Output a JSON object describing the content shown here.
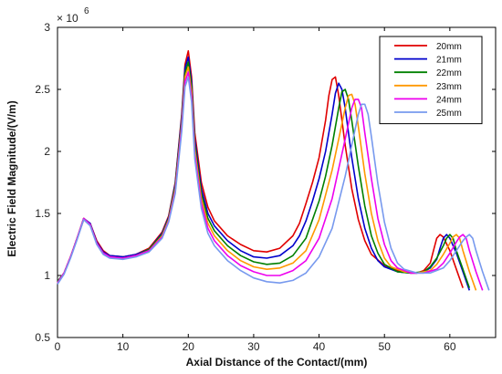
{
  "chart_data": {
    "type": "line",
    "xlabel": "Axial Distance of the Contact/(mm)",
    "ylabel": "Electric Field Magnitude/(V/m)",
    "exponent": {
      "base": "× 10",
      "power": "6"
    },
    "xlim": [
      0,
      67
    ],
    "ylim": [
      0.5,
      3
    ],
    "xticks": [
      0,
      10,
      20,
      30,
      40,
      50,
      60
    ],
    "yticks": [
      0.5,
      1,
      1.5,
      2,
      2.5,
      3
    ],
    "ytick_labels": [
      "0.5",
      "1",
      "1.5",
      "2",
      "2.5",
      "3"
    ],
    "grid": false,
    "legend_position": "top-right",
    "series": [
      {
        "name": "20mm",
        "color": "#e00000",
        "x": [
          0,
          1,
          2,
          3,
          4,
          5,
          6,
          7,
          8,
          10,
          12,
          14,
          16,
          17,
          18,
          19,
          19.5,
          20,
          20.5,
          21,
          22,
          23,
          24,
          26,
          28,
          30,
          32,
          34,
          36,
          37,
          38,
          39,
          40,
          41,
          41.5,
          42,
          42.5,
          43,
          44,
          45,
          46,
          47,
          48,
          50,
          52,
          54,
          55,
          56,
          57,
          57.5,
          58,
          58.5,
          59,
          60,
          61,
          62
        ],
        "y": [
          0.95,
          1.02,
          1.15,
          1.3,
          1.45,
          1.42,
          1.28,
          1.2,
          1.16,
          1.15,
          1.17,
          1.22,
          1.35,
          1.48,
          1.75,
          2.3,
          2.7,
          2.81,
          2.6,
          2.15,
          1.75,
          1.55,
          1.44,
          1.32,
          1.25,
          1.2,
          1.19,
          1.22,
          1.32,
          1.42,
          1.58,
          1.75,
          1.95,
          2.25,
          2.45,
          2.58,
          2.6,
          2.45,
          2.05,
          1.7,
          1.45,
          1.28,
          1.17,
          1.08,
          1.04,
          1.02,
          1.02,
          1.04,
          1.1,
          1.2,
          1.3,
          1.33,
          1.31,
          1.2,
          1.05,
          0.9
        ]
      },
      {
        "name": "21mm",
        "color": "#0000cc",
        "x": [
          0,
          1,
          2,
          3,
          4,
          5,
          6,
          7,
          8,
          10,
          12,
          14,
          16,
          17,
          18,
          19,
          19.5,
          20,
          20.5,
          21,
          22,
          23,
          24,
          26,
          28,
          30,
          32,
          34,
          36,
          37,
          38,
          39,
          40,
          41,
          42,
          42.5,
          43,
          43.5,
          44,
          45,
          46,
          47,
          48,
          49,
          50,
          52,
          54,
          55,
          56,
          57,
          58,
          58.5,
          59,
          59.5,
          60,
          61,
          62,
          63
        ],
        "y": [
          0.95,
          1.02,
          1.15,
          1.3,
          1.46,
          1.42,
          1.27,
          1.19,
          1.16,
          1.15,
          1.17,
          1.21,
          1.34,
          1.47,
          1.74,
          2.28,
          2.67,
          2.76,
          2.56,
          2.1,
          1.7,
          1.5,
          1.4,
          1.28,
          1.2,
          1.15,
          1.14,
          1.16,
          1.24,
          1.32,
          1.44,
          1.6,
          1.78,
          2.0,
          2.3,
          2.47,
          2.55,
          2.5,
          2.35,
          1.95,
          1.62,
          1.38,
          1.22,
          1.12,
          1.07,
          1.03,
          1.02,
          1.02,
          1.03,
          1.06,
          1.13,
          1.22,
          1.3,
          1.33,
          1.3,
          1.18,
          1.03,
          0.88
        ]
      },
      {
        "name": "22mm",
        "color": "#008000",
        "x": [
          0,
          1,
          2,
          3,
          4,
          5,
          6,
          7,
          8,
          10,
          12,
          14,
          16,
          17,
          18,
          19,
          19.5,
          20,
          20.5,
          21,
          22,
          23,
          24,
          26,
          28,
          30,
          32,
          34,
          36,
          38,
          40,
          41,
          42,
          43,
          43.5,
          44,
          44.5,
          45,
          46,
          47,
          48,
          49,
          50,
          52,
          54,
          56,
          57,
          58,
          59,
          59.5,
          60,
          60.5,
          61,
          62,
          63
        ],
        "y": [
          0.95,
          1.02,
          1.15,
          1.3,
          1.46,
          1.41,
          1.26,
          1.18,
          1.15,
          1.14,
          1.16,
          1.21,
          1.33,
          1.46,
          1.72,
          2.25,
          2.63,
          2.72,
          2.52,
          2.06,
          1.66,
          1.46,
          1.36,
          1.24,
          1.16,
          1.11,
          1.09,
          1.1,
          1.16,
          1.3,
          1.6,
          1.8,
          2.05,
          2.35,
          2.48,
          2.5,
          2.42,
          2.25,
          1.88,
          1.56,
          1.32,
          1.18,
          1.09,
          1.03,
          1.02,
          1.03,
          1.07,
          1.14,
          1.24,
          1.3,
          1.33,
          1.3,
          1.2,
          1.05,
          0.9
        ]
      },
      {
        "name": "23mm",
        "color": "#ff9900",
        "x": [
          0,
          1,
          2,
          3,
          4,
          5,
          6,
          7,
          8,
          10,
          12,
          14,
          16,
          17,
          18,
          19,
          19.5,
          20,
          20.5,
          21,
          22,
          23,
          24,
          26,
          28,
          30,
          32,
          34,
          36,
          38,
          40,
          42,
          43,
          44,
          44.5,
          45,
          45.5,
          46,
          47,
          48,
          49,
          50,
          51,
          53,
          55,
          57,
          58,
          59,
          60,
          60.5,
          61,
          61.5,
          62,
          63,
          64
        ],
        "y": [
          0.94,
          1.02,
          1.15,
          1.3,
          1.46,
          1.41,
          1.26,
          1.18,
          1.15,
          1.14,
          1.16,
          1.2,
          1.32,
          1.45,
          1.7,
          2.22,
          2.6,
          2.68,
          2.48,
          2.02,
          1.62,
          1.42,
          1.32,
          1.2,
          1.12,
          1.07,
          1.05,
          1.06,
          1.1,
          1.2,
          1.45,
          1.85,
          2.1,
          2.35,
          2.45,
          2.46,
          2.38,
          2.2,
          1.82,
          1.5,
          1.28,
          1.14,
          1.07,
          1.03,
          1.02,
          1.04,
          1.09,
          1.17,
          1.26,
          1.31,
          1.33,
          1.3,
          1.2,
          1.03,
          0.88
        ]
      },
      {
        "name": "24mm",
        "color": "#ee00ee",
        "x": [
          0,
          1,
          2,
          3,
          4,
          5,
          6,
          7,
          8,
          10,
          12,
          14,
          16,
          17,
          18,
          19,
          19.5,
          20,
          20.5,
          21,
          22,
          23,
          24,
          26,
          28,
          30,
          32,
          34,
          36,
          38,
          40,
          42,
          44,
          45,
          45.5,
          46,
          46.5,
          47,
          48,
          49,
          50,
          51,
          52,
          54,
          56,
          58,
          59,
          60,
          61,
          61.5,
          62,
          62.5,
          63,
          64,
          65
        ],
        "y": [
          0.94,
          1.02,
          1.15,
          1.3,
          1.46,
          1.41,
          1.26,
          1.18,
          1.15,
          1.14,
          1.16,
          1.2,
          1.31,
          1.44,
          1.68,
          2.2,
          2.56,
          2.64,
          2.44,
          1.98,
          1.58,
          1.38,
          1.28,
          1.16,
          1.08,
          1.03,
          1.0,
          1.0,
          1.04,
          1.12,
          1.3,
          1.62,
          2.1,
          2.35,
          2.42,
          2.42,
          2.35,
          2.15,
          1.78,
          1.46,
          1.25,
          1.12,
          1.06,
          1.02,
          1.02,
          1.05,
          1.1,
          1.18,
          1.27,
          1.31,
          1.33,
          1.3,
          1.2,
          1.03,
          0.88
        ]
      },
      {
        "name": "25mm",
        "color": "#7799ee",
        "x": [
          0,
          1,
          2,
          3,
          4,
          5,
          6,
          7,
          8,
          10,
          12,
          14,
          16,
          17,
          18,
          19,
          19.5,
          20,
          20.5,
          21,
          22,
          23,
          24,
          26,
          28,
          30,
          32,
          34,
          36,
          38,
          40,
          42,
          44,
          45,
          46,
          46.5,
          47,
          47.5,
          48,
          49,
          50,
          51,
          52,
          53,
          55,
          57,
          59,
          60,
          61,
          62,
          62.5,
          63,
          63.5,
          64,
          65,
          66
        ],
        "y": [
          0.93,
          1.01,
          1.14,
          1.29,
          1.45,
          1.4,
          1.25,
          1.17,
          1.14,
          1.13,
          1.15,
          1.19,
          1.3,
          1.43,
          1.66,
          2.16,
          2.52,
          2.6,
          2.4,
          1.94,
          1.54,
          1.34,
          1.24,
          1.12,
          1.04,
          0.98,
          0.95,
          0.94,
          0.96,
          1.02,
          1.15,
          1.38,
          1.8,
          2.05,
          2.3,
          2.38,
          2.38,
          2.3,
          2.12,
          1.74,
          1.43,
          1.22,
          1.1,
          1.05,
          1.02,
          1.02,
          1.06,
          1.12,
          1.2,
          1.28,
          1.31,
          1.33,
          1.3,
          1.2,
          1.03,
          0.88
        ]
      }
    ]
  }
}
